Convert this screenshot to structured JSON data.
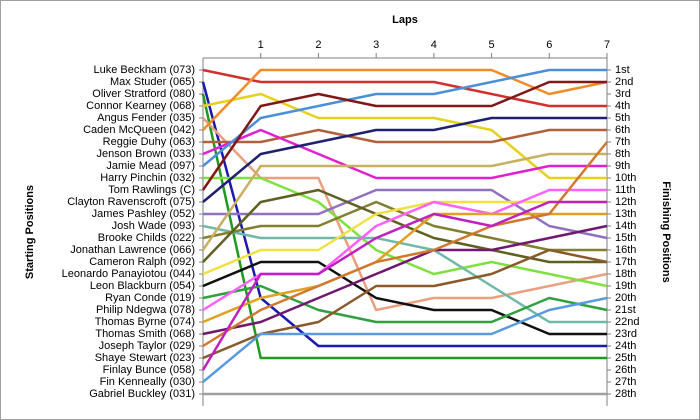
{
  "chart_data": {
    "type": "line",
    "title": "Laps",
    "y_label": "Starting Positions",
    "y2_label": "Finishing Positions",
    "x": [
      0,
      1,
      2,
      3,
      4,
      5,
      6,
      7
    ],
    "xlim": [
      0,
      7
    ],
    "xticks": [
      1,
      2,
      3,
      4,
      5,
      6,
      7
    ],
    "ylim": [
      0,
      29
    ],
    "y_reversed": true,
    "yticks": [
      {
        "value": 1,
        "label": "1st"
      },
      {
        "value": 2,
        "label": "2nd"
      },
      {
        "value": 3,
        "label": "3rd"
      },
      {
        "value": 4,
        "label": "4th"
      },
      {
        "value": 5,
        "label": "5th"
      },
      {
        "value": 6,
        "label": "6th"
      },
      {
        "value": 7,
        "label": "7th"
      },
      {
        "value": 8,
        "label": "8th"
      },
      {
        "value": 9,
        "label": "9th"
      },
      {
        "value": 10,
        "label": "10th"
      },
      {
        "value": 11,
        "label": "11th"
      },
      {
        "value": 12,
        "label": "12th"
      },
      {
        "value": 13,
        "label": "13th"
      },
      {
        "value": 14,
        "label": "14th"
      },
      {
        "value": 15,
        "label": "15th"
      },
      {
        "value": 16,
        "label": "16th"
      },
      {
        "value": 17,
        "label": "17th"
      },
      {
        "value": 18,
        "label": "18th"
      },
      {
        "value": 19,
        "label": "19th"
      },
      {
        "value": 20,
        "label": "20th"
      },
      {
        "value": 21,
        "label": "21st"
      },
      {
        "value": 22,
        "label": "22nd"
      },
      {
        "value": 23,
        "label": "23rd"
      },
      {
        "value": 24,
        "label": "24th"
      },
      {
        "value": 25,
        "label": "25th"
      },
      {
        "value": 26,
        "label": "26th"
      },
      {
        "value": 27,
        "label": "27th"
      },
      {
        "value": 28,
        "label": "28th"
      }
    ],
    "series": [
      {
        "name": "Luke Beckham (073)",
        "color": "#d03030",
        "values": [
          1,
          2,
          2,
          2,
          2,
          3,
          4,
          4
        ]
      },
      {
        "name": "Max Studer (065)",
        "color": "#1a1ab0",
        "values": [
          2,
          20,
          24,
          24,
          24,
          24,
          24,
          24
        ]
      },
      {
        "name": "Oliver Stratford (080)",
        "color": "#1f9a1f",
        "values": [
          3,
          25,
          25,
          25,
          25,
          25,
          25,
          25
        ]
      },
      {
        "name": "Connor Kearney (068)",
        "color": "#e6d21e",
        "values": [
          4,
          3,
          5,
          5,
          5,
          6,
          10,
          10
        ]
      },
      {
        "name": "Angus Fender (035)",
        "color": "#e8a080",
        "values": [
          5,
          10,
          10,
          21,
          20,
          20,
          19,
          18
        ]
      },
      {
        "name": "Caden McQueen (042)",
        "color": "#f08c28",
        "values": [
          6,
          1,
          1,
          1,
          1,
          1,
          3,
          2
        ]
      },
      {
        "name": "Reggie Duhy (063)",
        "color": "#b0603a",
        "values": [
          7,
          7,
          6,
          7,
          7,
          7,
          6,
          6
        ]
      },
      {
        "name": "Jenson Brown (033)",
        "color": "#e020d0",
        "values": [
          8,
          6,
          8,
          10,
          10,
          10,
          9,
          9
        ]
      },
      {
        "name": "Jamie Mead (097)",
        "color": "#4a90d9",
        "values": [
          9,
          5,
          4,
          3,
          3,
          2,
          1,
          1
        ]
      },
      {
        "name": "Harry Pinchin (032)",
        "color": "#80e040",
        "values": [
          10,
          10,
          12,
          16,
          18,
          17,
          18,
          19
        ]
      },
      {
        "name": "Tom Rawlings (C)",
        "color": "#801818",
        "values": [
          11,
          4,
          3,
          4,
          4,
          4,
          2,
          2
        ]
      },
      {
        "name": "Clayton Ravenscroft (075)",
        "color": "#202070",
        "values": [
          12,
          8,
          7,
          6,
          6,
          5,
          5,
          5
        ]
      },
      {
        "name": "James Pashley (052)",
        "color": "#9070c0",
        "values": [
          13,
          13,
          13,
          11,
          11,
          11,
          14,
          15
        ]
      },
      {
        "name": "Josh Wade (093)",
        "color": "#70b8a8",
        "values": [
          14,
          15,
          15,
          15,
          16,
          19,
          22,
          22
        ]
      },
      {
        "name": "Brooke Childs (022)",
        "color": "#808030",
        "values": [
          15,
          14,
          14,
          12,
          14,
          15,
          16,
          16
        ]
      },
      {
        "name": "Jonathan Lawrence (066)",
        "color": "#c8b060",
        "values": [
          16,
          9,
          9,
          9,
          9,
          9,
          8,
          8
        ]
      },
      {
        "name": "Cameron Ralph (092)",
        "color": "#606020",
        "values": [
          17,
          12,
          11,
          13,
          15,
          16,
          17,
          17
        ]
      },
      {
        "name": "Leonardo Panayiotou (044)",
        "color": "#f0e040",
        "values": [
          18,
          16,
          16,
          13,
          12,
          12,
          12,
          12
        ]
      },
      {
        "name": "Leon Blackburn (054)",
        "color": "#101010",
        "values": [
          19,
          17,
          17,
          20,
          21,
          21,
          23,
          23
        ]
      },
      {
        "name": "Ryan Conde (019)",
        "color": "#30a040",
        "values": [
          20,
          19,
          21,
          22,
          22,
          22,
          20,
          21
        ]
      },
      {
        "name": "Philip Ndegwa (078)",
        "color": "#ff60ff",
        "values": [
          21,
          18,
          18,
          14,
          12,
          13,
          11,
          11
        ]
      },
      {
        "name": "Thomas Byrne (074)",
        "color": "#e0a020",
        "values": [
          22,
          20,
          19,
          17,
          13,
          13,
          13,
          13
        ]
      },
      {
        "name": "Thomas Smith (068)",
        "color": "#701870",
        "values": [
          23,
          22,
          20,
          18,
          16,
          16,
          15,
          14
        ]
      },
      {
        "name": "Joseph Taylor (029)",
        "color": "#d07830",
        "values": [
          24,
          21,
          19,
          17,
          16,
          14,
          13,
          7
        ]
      },
      {
        "name": "Shaye Stewart (023)",
        "color": "#8a5a2a",
        "values": [
          25,
          23,
          22,
          19,
          19,
          18,
          16,
          17
        ]
      },
      {
        "name": "Finlay Bunce (058)",
        "color": "#c020c0",
        "values": [
          26,
          18,
          18,
          15,
          13,
          14,
          12,
          12
        ]
      },
      {
        "name": "Fin Kenneally (030)",
        "color": "#5a9ae0",
        "values": [
          27,
          23,
          23,
          23,
          23,
          23,
          21,
          20
        ]
      },
      {
        "name": "Gabriel Buckley (031)",
        "color": "#a0a0a0",
        "values": [
          28,
          28,
          28,
          28,
          28,
          28,
          28,
          28
        ]
      }
    ]
  }
}
